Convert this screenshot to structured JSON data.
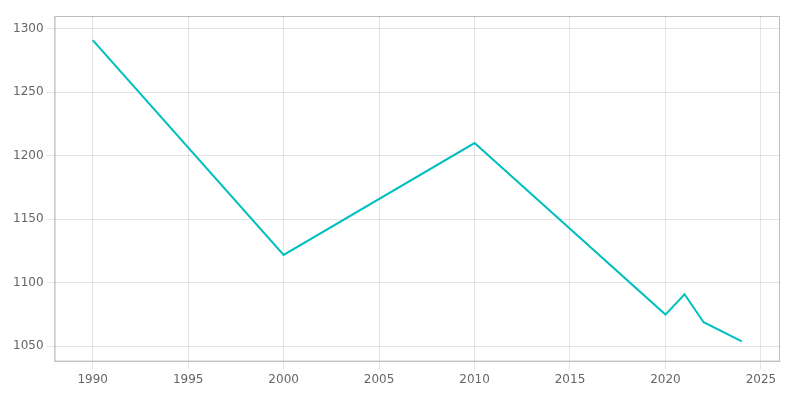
{
  "chart_data": {
    "type": "line",
    "x": [
      1990,
      2000,
      2010,
      2020,
      2021,
      2022,
      2024
    ],
    "values": [
      1291,
      1122,
      1210,
      1075,
      1091,
      1069,
      1054
    ],
    "color": "#00BFBF",
    "xlim": [
      1988,
      2026
    ],
    "ylim": [
      1038,
      1310
    ],
    "xticks": [
      1990,
      1995,
      2000,
      2005,
      2010,
      2015,
      2020,
      2025
    ],
    "yticks": [
      1050,
      1100,
      1150,
      1200,
      1250,
      1300
    ],
    "grid": true
  }
}
